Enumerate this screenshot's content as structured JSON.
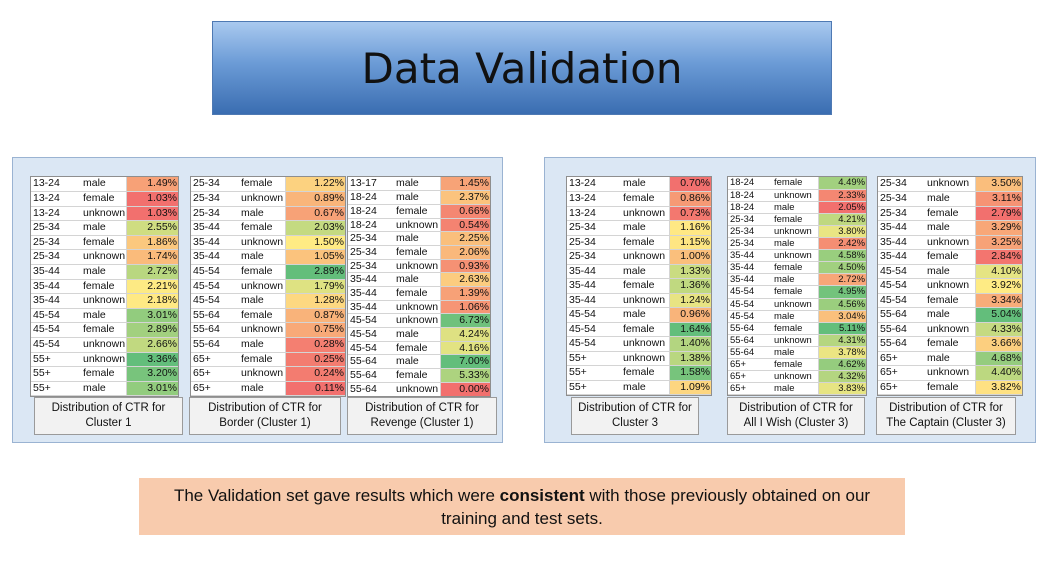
{
  "title": "Data Validation",
  "footer": {
    "before": "The Validation set gave results which were ",
    "bold": "consistent",
    "after": " with those previously obtained on our training and test sets."
  },
  "panels": [
    {
      "id": "left",
      "tables": [
        {
          "caption": [
            "Distribution of CTR for",
            "Cluster 1"
          ],
          "rows": [
            [
              "13-24",
              "male",
              "1.49%"
            ],
            [
              "13-24",
              "female",
              "1.03%"
            ],
            [
              "13-24",
              "unknown",
              "1.03%"
            ],
            [
              "25-34",
              "male",
              "2.55%"
            ],
            [
              "25-34",
              "female",
              "1.86%"
            ],
            [
              "25-34",
              "unknown",
              "1.74%"
            ],
            [
              "35-44",
              "male",
              "2.72%"
            ],
            [
              "35-44",
              "female",
              "2.21%"
            ],
            [
              "35-44",
              "unknown",
              "2.18%"
            ],
            [
              "45-54",
              "male",
              "3.01%"
            ],
            [
              "45-54",
              "female",
              "2.89%"
            ],
            [
              "45-54",
              "unknown",
              "2.66%"
            ],
            [
              "55+",
              "unknown",
              "3.36%"
            ],
            [
              "55+",
              "female",
              "3.20%"
            ],
            [
              "55+",
              "male",
              "3.01%"
            ]
          ]
        },
        {
          "caption": [
            "Distribution of CTR for",
            "Border (Cluster 1)"
          ],
          "rows": [
            [
              "25-34",
              "female",
              "1.22%"
            ],
            [
              "25-34",
              "unknown",
              "0.89%"
            ],
            [
              "25-34",
              "male",
              "0.67%"
            ],
            [
              "35-44",
              "female",
              "2.03%"
            ],
            [
              "35-44",
              "unknown",
              "1.50%"
            ],
            [
              "35-44",
              "male",
              "1.05%"
            ],
            [
              "45-54",
              "female",
              "2.89%"
            ],
            [
              "45-54",
              "unknown",
              "1.79%"
            ],
            [
              "45-54",
              "male",
              "1.28%"
            ],
            [
              "55-64",
              "female",
              "0.87%"
            ],
            [
              "55-64",
              "unknown",
              "0.75%"
            ],
            [
              "55-64",
              "male",
              "0.28%"
            ],
            [
              "65+",
              "female",
              "0.25%"
            ],
            [
              "65+",
              "unknown",
              "0.24%"
            ],
            [
              "65+",
              "male",
              "0.11%"
            ]
          ]
        },
        {
          "caption": [
            "Distribution of CTR for",
            "Revenge (Cluster 1)"
          ],
          "rows": [
            [
              "13-17",
              "male",
              "1.45%"
            ],
            [
              "18-24",
              "male",
              "2.37%"
            ],
            [
              "18-24",
              "female",
              "0.66%"
            ],
            [
              "18-24",
              "unknown",
              "0.54%"
            ],
            [
              "25-34",
              "male",
              "2.25%"
            ],
            [
              "25-34",
              "female",
              "2.06%"
            ],
            [
              "25-34",
              "unknown",
              "0.93%"
            ],
            [
              "35-44",
              "male",
              "2.63%"
            ],
            [
              "35-44",
              "female",
              "1.39%"
            ],
            [
              "35-44",
              "unknown",
              "1.06%"
            ],
            [
              "45-54",
              "unknown",
              "6.73%"
            ],
            [
              "45-54",
              "male",
              "4.24%"
            ],
            [
              "45-54",
              "female",
              "4.16%"
            ],
            [
              "55-64",
              "male",
              "7.00%"
            ],
            [
              "55-64",
              "female",
              "5.33%"
            ],
            [
              "55-64",
              "unknown",
              "0.00%"
            ]
          ]
        }
      ]
    },
    {
      "id": "right",
      "tables": [
        {
          "caption": [
            "Distribution of CTR for",
            "Cluster 3"
          ],
          "rows": [
            [
              "13-24",
              "male",
              "0.70%"
            ],
            [
              "13-24",
              "female",
              "0.86%"
            ],
            [
              "13-24",
              "unknown",
              "0.73%"
            ],
            [
              "25-34",
              "male",
              "1.16%"
            ],
            [
              "25-34",
              "female",
              "1.15%"
            ],
            [
              "25-34",
              "unknown",
              "1.00%"
            ],
            [
              "35-44",
              "male",
              "1.33%"
            ],
            [
              "35-44",
              "female",
              "1.36%"
            ],
            [
              "35-44",
              "unknown",
              "1.24%"
            ],
            [
              "45-54",
              "male",
              "0.96%"
            ],
            [
              "45-54",
              "female",
              "1.64%"
            ],
            [
              "45-54",
              "unknown",
              "1.40%"
            ],
            [
              "55+",
              "unknown",
              "1.38%"
            ],
            [
              "55+",
              "female",
              "1.58%"
            ],
            [
              "55+",
              "male",
              "1.09%"
            ]
          ]
        },
        {
          "caption": [
            "Distribution of CTR for",
            "All I Wish (Cluster 3)"
          ],
          "rows": [
            [
              "18-24",
              "female",
              "4.49%"
            ],
            [
              "18-24",
              "unknown",
              "2.33%"
            ],
            [
              "18-24",
              "male",
              "2.05%"
            ],
            [
              "25-34",
              "female",
              "4.21%"
            ],
            [
              "25-34",
              "unknown",
              "3.80%"
            ],
            [
              "25-34",
              "male",
              "2.42%"
            ],
            [
              "35-44",
              "unknown",
              "4.58%"
            ],
            [
              "35-44",
              "female",
              "4.50%"
            ],
            [
              "35-44",
              "male",
              "2.72%"
            ],
            [
              "45-54",
              "female",
              "4.95%"
            ],
            [
              "45-54",
              "unknown",
              "4.56%"
            ],
            [
              "45-54",
              "male",
              "3.04%"
            ],
            [
              "55-64",
              "female",
              "5.11%"
            ],
            [
              "55-64",
              "unknown",
              "4.31%"
            ],
            [
              "55-64",
              "male",
              "3.78%"
            ],
            [
              "65+",
              "female",
              "4.62%"
            ],
            [
              "65+",
              "unknown",
              "4.32%"
            ],
            [
              "65+",
              "male",
              "3.83%"
            ]
          ]
        },
        {
          "caption": [
            "Distribution of CTR for",
            "The Captain (Cluster 3)"
          ],
          "rows": [
            [
              "25-34",
              "unknown",
              "3.50%"
            ],
            [
              "25-34",
              "male",
              "3.11%"
            ],
            [
              "25-34",
              "female",
              "2.79%"
            ],
            [
              "35-44",
              "male",
              "3.29%"
            ],
            [
              "35-44",
              "unknown",
              "3.25%"
            ],
            [
              "35-44",
              "female",
              "2.84%"
            ],
            [
              "45-54",
              "male",
              "4.10%"
            ],
            [
              "45-54",
              "unknown",
              "3.92%"
            ],
            [
              "45-54",
              "female",
              "3.34%"
            ],
            [
              "55-64",
              "male",
              "5.04%"
            ],
            [
              "55-64",
              "unknown",
              "4.33%"
            ],
            [
              "55-64",
              "female",
              "3.66%"
            ],
            [
              "65+",
              "male",
              "4.68%"
            ],
            [
              "65+",
              "unknown",
              "4.40%"
            ],
            [
              "65+",
              "female",
              "3.82%"
            ]
          ]
        }
      ]
    }
  ]
}
